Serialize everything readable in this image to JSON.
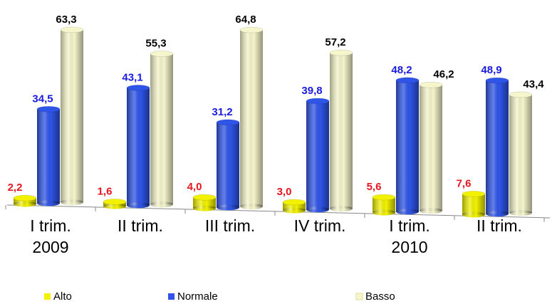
{
  "chart_data": {
    "type": "bar",
    "categories": [
      "I trim. 2009",
      "II trim.",
      "III trim.",
      "IV trim.",
      "I trim. 2010",
      "II trim."
    ],
    "series": [
      {
        "name": "Alto",
        "color": "#f2f200",
        "label_color": "#e8141e",
        "values": [
          2.2,
          1.6,
          4.0,
          3.0,
          5.6,
          7.6
        ],
        "value_labels": [
          "2,2",
          "1,6",
          "4,0",
          "3,0",
          "5,6",
          "7,6"
        ]
      },
      {
        "name": "Normale",
        "color": "#2f55e8",
        "label_color": "#1a1ae0",
        "values": [
          34.5,
          43.1,
          31.2,
          39.8,
          48.2,
          48.9
        ],
        "value_labels": [
          "34,5",
          "43,1",
          "31,2",
          "39,8",
          "48,2",
          "48,9"
        ]
      },
      {
        "name": "Basso",
        "color": "#f6f6cc",
        "label_color": "#000000",
        "values": [
          63.3,
          55.3,
          64.8,
          57.2,
          46.2,
          43.4
        ],
        "value_labels": [
          "63,3",
          "55,3",
          "64,8",
          "57,2",
          "46,2",
          "43,4"
        ]
      }
    ]
  }
}
